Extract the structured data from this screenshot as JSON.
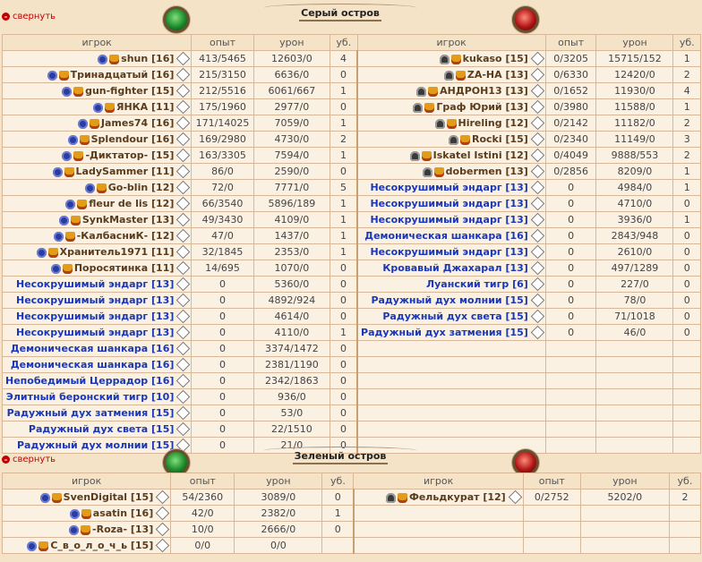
{
  "collapse_label": "свернуть",
  "headers": [
    "игрок",
    "опыт",
    "урон",
    "уб."
  ],
  "sections": [
    {
      "title": "Серый остров",
      "left": [
        {
          "name": "shun [16]",
          "icons": [
            "clan",
            "rank"
          ],
          "exp": "413/5465",
          "dmg": "12603/0",
          "kills": "4"
        },
        {
          "name": "Тринадцатый [16]",
          "icons": [
            "clan",
            "rank"
          ],
          "exp": "215/3150",
          "dmg": "6636/0",
          "kills": "0"
        },
        {
          "name": "gun-fighter [15]",
          "icons": [
            "clan",
            "rank"
          ],
          "exp": "212/5516",
          "dmg": "6061/667",
          "kills": "1"
        },
        {
          "name": "ЯНКА [11]",
          "icons": [
            "clan",
            "rank"
          ],
          "exp": "175/1960",
          "dmg": "2977/0",
          "kills": "0"
        },
        {
          "name": "James74 [16]",
          "icons": [
            "clan",
            "rank"
          ],
          "exp": "171/14025",
          "dmg": "7059/0",
          "kills": "1"
        },
        {
          "name": "Splendour [16]",
          "icons": [
            "clan",
            "rank"
          ],
          "exp": "169/2980",
          "dmg": "4730/0",
          "kills": "2"
        },
        {
          "name": "-Диктатор- [15]",
          "icons": [
            "clan",
            "rank"
          ],
          "exp": "163/3305",
          "dmg": "7594/0",
          "kills": "1"
        },
        {
          "name": "LadySammer [11]",
          "icons": [
            "clan",
            "rank"
          ],
          "exp": "86/0",
          "dmg": "2590/0",
          "kills": "0"
        },
        {
          "name": "Go-blin [12]",
          "icons": [
            "clan",
            "rank"
          ],
          "exp": "72/0",
          "dmg": "7771/0",
          "kills": "5"
        },
        {
          "name": "fleur de lis [12]",
          "icons": [
            "clan",
            "rank"
          ],
          "exp": "66/3540",
          "dmg": "5896/189",
          "kills": "1"
        },
        {
          "name": "SynkMaster [13]",
          "icons": [
            "clan",
            "rank"
          ],
          "exp": "49/3430",
          "dmg": "4109/0",
          "kills": "1"
        },
        {
          "name": "-КалбасниК- [12]",
          "icons": [
            "clan",
            "rank"
          ],
          "exp": "47/0",
          "dmg": "1437/0",
          "kills": "1"
        },
        {
          "name": "Хранитель1971 [11]",
          "icons": [
            "clan",
            "rank"
          ],
          "exp": "32/1845",
          "dmg": "2353/0",
          "kills": "1"
        },
        {
          "name": "Поросятинка [11]",
          "icons": [
            "clan",
            "rank"
          ],
          "exp": "14/695",
          "dmg": "1070/0",
          "kills": "0"
        },
        {
          "name": "Несокрушимый эндарг [13]",
          "mob": true,
          "exp": "0",
          "dmg": "5360/0",
          "kills": "0"
        },
        {
          "name": "Несокрушимый эндарг [13]",
          "mob": true,
          "exp": "0",
          "dmg": "4892/924",
          "kills": "0"
        },
        {
          "name": "Несокрушимый эндарг [13]",
          "mob": true,
          "exp": "0",
          "dmg": "4614/0",
          "kills": "0"
        },
        {
          "name": "Несокрушимый эндарг [13]",
          "mob": true,
          "exp": "0",
          "dmg": "4110/0",
          "kills": "1"
        },
        {
          "name": "Демоническая шанкара [16]",
          "mob": true,
          "exp": "0",
          "dmg": "3374/1472",
          "kills": "0"
        },
        {
          "name": "Демоническая шанкара [16]",
          "mob": true,
          "exp": "0",
          "dmg": "2381/1190",
          "kills": "0"
        },
        {
          "name": "Непобедимый Церрадор [16]",
          "mob": true,
          "exp": "0",
          "dmg": "2342/1863",
          "kills": "0"
        },
        {
          "name": "Элитный беронский тигр [10]",
          "mob": true,
          "exp": "0",
          "dmg": "936/0",
          "kills": "0"
        },
        {
          "name": "Радужный дух затмения [15]",
          "mob": true,
          "exp": "0",
          "dmg": "53/0",
          "kills": "0"
        },
        {
          "name": "Радужный дух света [15]",
          "mob": true,
          "exp": "0",
          "dmg": "22/1510",
          "kills": "0"
        },
        {
          "name": "Радужный дух молнии [15]",
          "mob": true,
          "exp": "0",
          "dmg": "21/0",
          "kills": "0"
        }
      ],
      "right": [
        {
          "name": "kukaso [15]",
          "icons": [
            "skull",
            "rank"
          ],
          "exp": "0/3205",
          "dmg": "15715/152",
          "kills": "1"
        },
        {
          "name": "ZA-HA [13]",
          "icons": [
            "skull",
            "rank"
          ],
          "exp": "0/6330",
          "dmg": "12420/0",
          "kills": "2"
        },
        {
          "name": "АНДРОН13 [13]",
          "icons": [
            "skull",
            "rank"
          ],
          "exp": "0/1652",
          "dmg": "11930/0",
          "kills": "4"
        },
        {
          "name": "Граф Юрий [13]",
          "icons": [
            "skull",
            "rank"
          ],
          "exp": "0/3980",
          "dmg": "11588/0",
          "kills": "1"
        },
        {
          "name": "Hireling [12]",
          "icons": [
            "skull",
            "rank"
          ],
          "exp": "0/2142",
          "dmg": "11182/0",
          "kills": "2"
        },
        {
          "name": "Rocki [15]",
          "icons": [
            "skull",
            "rank"
          ],
          "exp": "0/2340",
          "dmg": "11149/0",
          "kills": "3"
        },
        {
          "name": "Iskatel Istini [12]",
          "icons": [
            "skull",
            "rank"
          ],
          "exp": "0/4049",
          "dmg": "9888/553",
          "kills": "2"
        },
        {
          "name": "dobermen [13]",
          "icons": [
            "skull",
            "rank"
          ],
          "exp": "0/2856",
          "dmg": "8209/0",
          "kills": "1"
        },
        {
          "name": "Несокрушимый эндарг [13]",
          "mob": true,
          "exp": "0",
          "dmg": "4984/0",
          "kills": "1"
        },
        {
          "name": "Несокрушимый эндарг [13]",
          "mob": true,
          "exp": "0",
          "dmg": "4710/0",
          "kills": "0"
        },
        {
          "name": "Несокрушимый эндарг [13]",
          "mob": true,
          "exp": "0",
          "dmg": "3936/0",
          "kills": "1"
        },
        {
          "name": "Демоническая шанкара [16]",
          "mob": true,
          "exp": "0",
          "dmg": "2843/948",
          "kills": "0"
        },
        {
          "name": "Несокрушимый эндарг [13]",
          "mob": true,
          "exp": "0",
          "dmg": "2610/0",
          "kills": "0"
        },
        {
          "name": "Кровавый Джахарал [13]",
          "mob": true,
          "exp": "0",
          "dmg": "497/1289",
          "kills": "0"
        },
        {
          "name": "Луанский тигр [6]",
          "mob": true,
          "exp": "0",
          "dmg": "227/0",
          "kills": "0"
        },
        {
          "name": "Радужный дух молнии [15]",
          "mob": true,
          "exp": "0",
          "dmg": "78/0",
          "kills": "0"
        },
        {
          "name": "Радужный дух света [15]",
          "mob": true,
          "exp": "0",
          "dmg": "71/1018",
          "kills": "0"
        },
        {
          "name": "Радужный дух затмения [15]",
          "mob": true,
          "exp": "0",
          "dmg": "46/0",
          "kills": "0"
        }
      ]
    },
    {
      "title": "Зеленый остров",
      "left": [
        {
          "name": "SvenDigital [15]",
          "icons": [
            "clan",
            "rank"
          ],
          "exp": "54/2360",
          "dmg": "3089/0",
          "kills": "0"
        },
        {
          "name": "asatin [16]",
          "icons": [
            "clan",
            "rank"
          ],
          "exp": "42/0",
          "dmg": "2382/0",
          "kills": "1"
        },
        {
          "name": "-Roza- [13]",
          "icons": [
            "clan",
            "rank"
          ],
          "exp": "10/0",
          "dmg": "2666/0",
          "kills": "0"
        },
        {
          "name": "С_в_о_л_о_ч_ь [15]",
          "icons": [
            "clan",
            "rank"
          ],
          "exp": "0/0",
          "dmg": "0/0",
          "kills": ""
        }
      ],
      "right": [
        {
          "name": "Фельдкурат [12]",
          "icons": [
            "skull",
            "rank"
          ],
          "exp": "0/2752",
          "dmg": "5202/0",
          "kills": "2"
        }
      ]
    }
  ]
}
